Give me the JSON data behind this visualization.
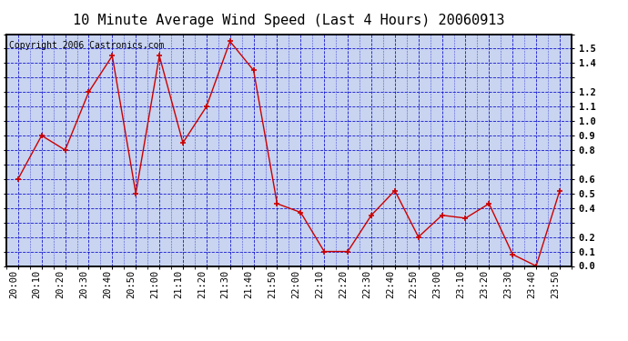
{
  "title": "10 Minute Average Wind Speed (Last 4 Hours) 20060913",
  "copyright_text": "Copyright 2006 Castronics.com",
  "x_labels": [
    "20:00",
    "20:10",
    "20:20",
    "20:30",
    "20:40",
    "20:50",
    "21:00",
    "21:10",
    "21:20",
    "21:30",
    "21:40",
    "21:50",
    "22:00",
    "22:10",
    "22:20",
    "22:30",
    "22:40",
    "22:50",
    "23:00",
    "23:10",
    "23:20",
    "23:30",
    "23:40",
    "23:50"
  ],
  "y_values": [
    0.6,
    0.9,
    0.8,
    1.2,
    1.45,
    0.5,
    1.45,
    0.85,
    1.1,
    1.55,
    1.35,
    0.43,
    0.37,
    0.1,
    0.1,
    0.35,
    0.52,
    0.2,
    0.35,
    0.33,
    0.43,
    0.08,
    0.0,
    0.52
  ],
  "ylim": [
    0.0,
    1.6
  ],
  "yticks": [
    0.0,
    0.1,
    0.2,
    0.3,
    0.4,
    0.5,
    0.6,
    0.7,
    0.8,
    0.9,
    1.0,
    1.1,
    1.2,
    1.3,
    1.4,
    1.5,
    1.6
  ],
  "right_ytick_labels": [
    "0.0",
    "0.1",
    "0.2",
    "",
    "0.4",
    "0.5",
    "0.6",
    "",
    "0.8",
    "0.9",
    "1.0",
    "1.1",
    "1.2",
    "",
    "1.4",
    "1.5",
    ""
  ],
  "line_color": "#cc0000",
  "marker": "+",
  "marker_color": "#cc0000",
  "plot_bg_color": "#c8d4f0",
  "grid_color": "#0000cc",
  "title_fontsize": 11,
  "copyright_fontsize": 7,
  "tick_fontsize": 7.5,
  "fig_bg_color": "#ffffff",
  "border_color": "#000000"
}
